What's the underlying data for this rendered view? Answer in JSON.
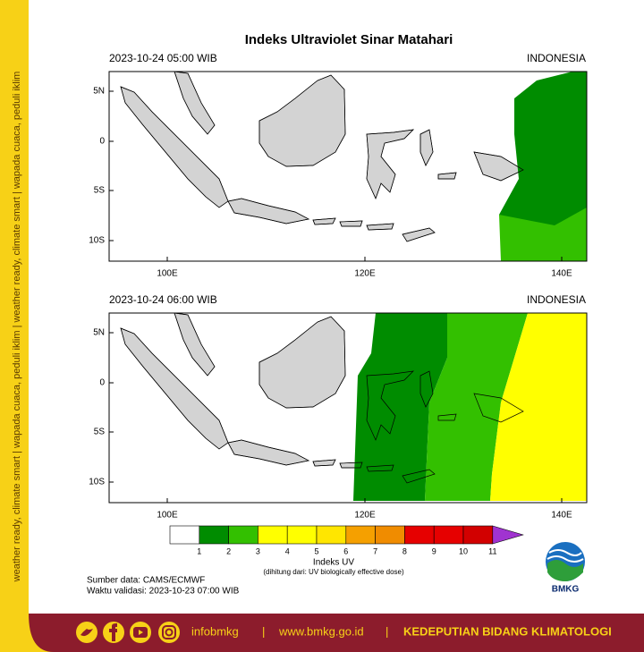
{
  "title": "Indeks Ultraviolet Sinar Matahari",
  "side_text": "weather ready, climate smart | wapada cuaca, peduli iklim | weather ready, climate smart | wapada cuaca, peduli iklim",
  "panels": [
    {
      "date": "2023-10-24  05:00 WIB",
      "region": "INDONESIA"
    },
    {
      "date": "2023-10-24  06:00 WIB",
      "region": "INDONESIA"
    }
  ],
  "lat_ticks": [
    "5N",
    "0",
    "5S",
    "10S"
  ],
  "lon_ticks": [
    "100E",
    "120E",
    "140E"
  ],
  "colorbar": {
    "ticks": [
      1,
      2,
      3,
      4,
      5,
      6,
      7,
      8,
      9,
      10,
      11
    ],
    "colors": [
      "#ffffff",
      "#008c00",
      "#33c000",
      "#ffff00",
      "#ffff00",
      "#ffe600",
      "#f5a000",
      "#f08c00",
      "#e60000",
      "#e60000",
      "#d20000",
      "#a033d0"
    ],
    "label": "Indeks UV",
    "note": "(dihitung dari: UV biologically effective dose)"
  },
  "source": "Sumber data: CAMS/ECMWF",
  "valid": "Waktu validasi: 2023-10-23 07:00 WIB",
  "logo": "BMKG",
  "footer": {
    "handle": "infobmkg",
    "separator": "|",
    "url": "www.bmkg.go.id",
    "dept": "KEDEPUTIAN BIDANG KLIMATOLOGI"
  }
}
